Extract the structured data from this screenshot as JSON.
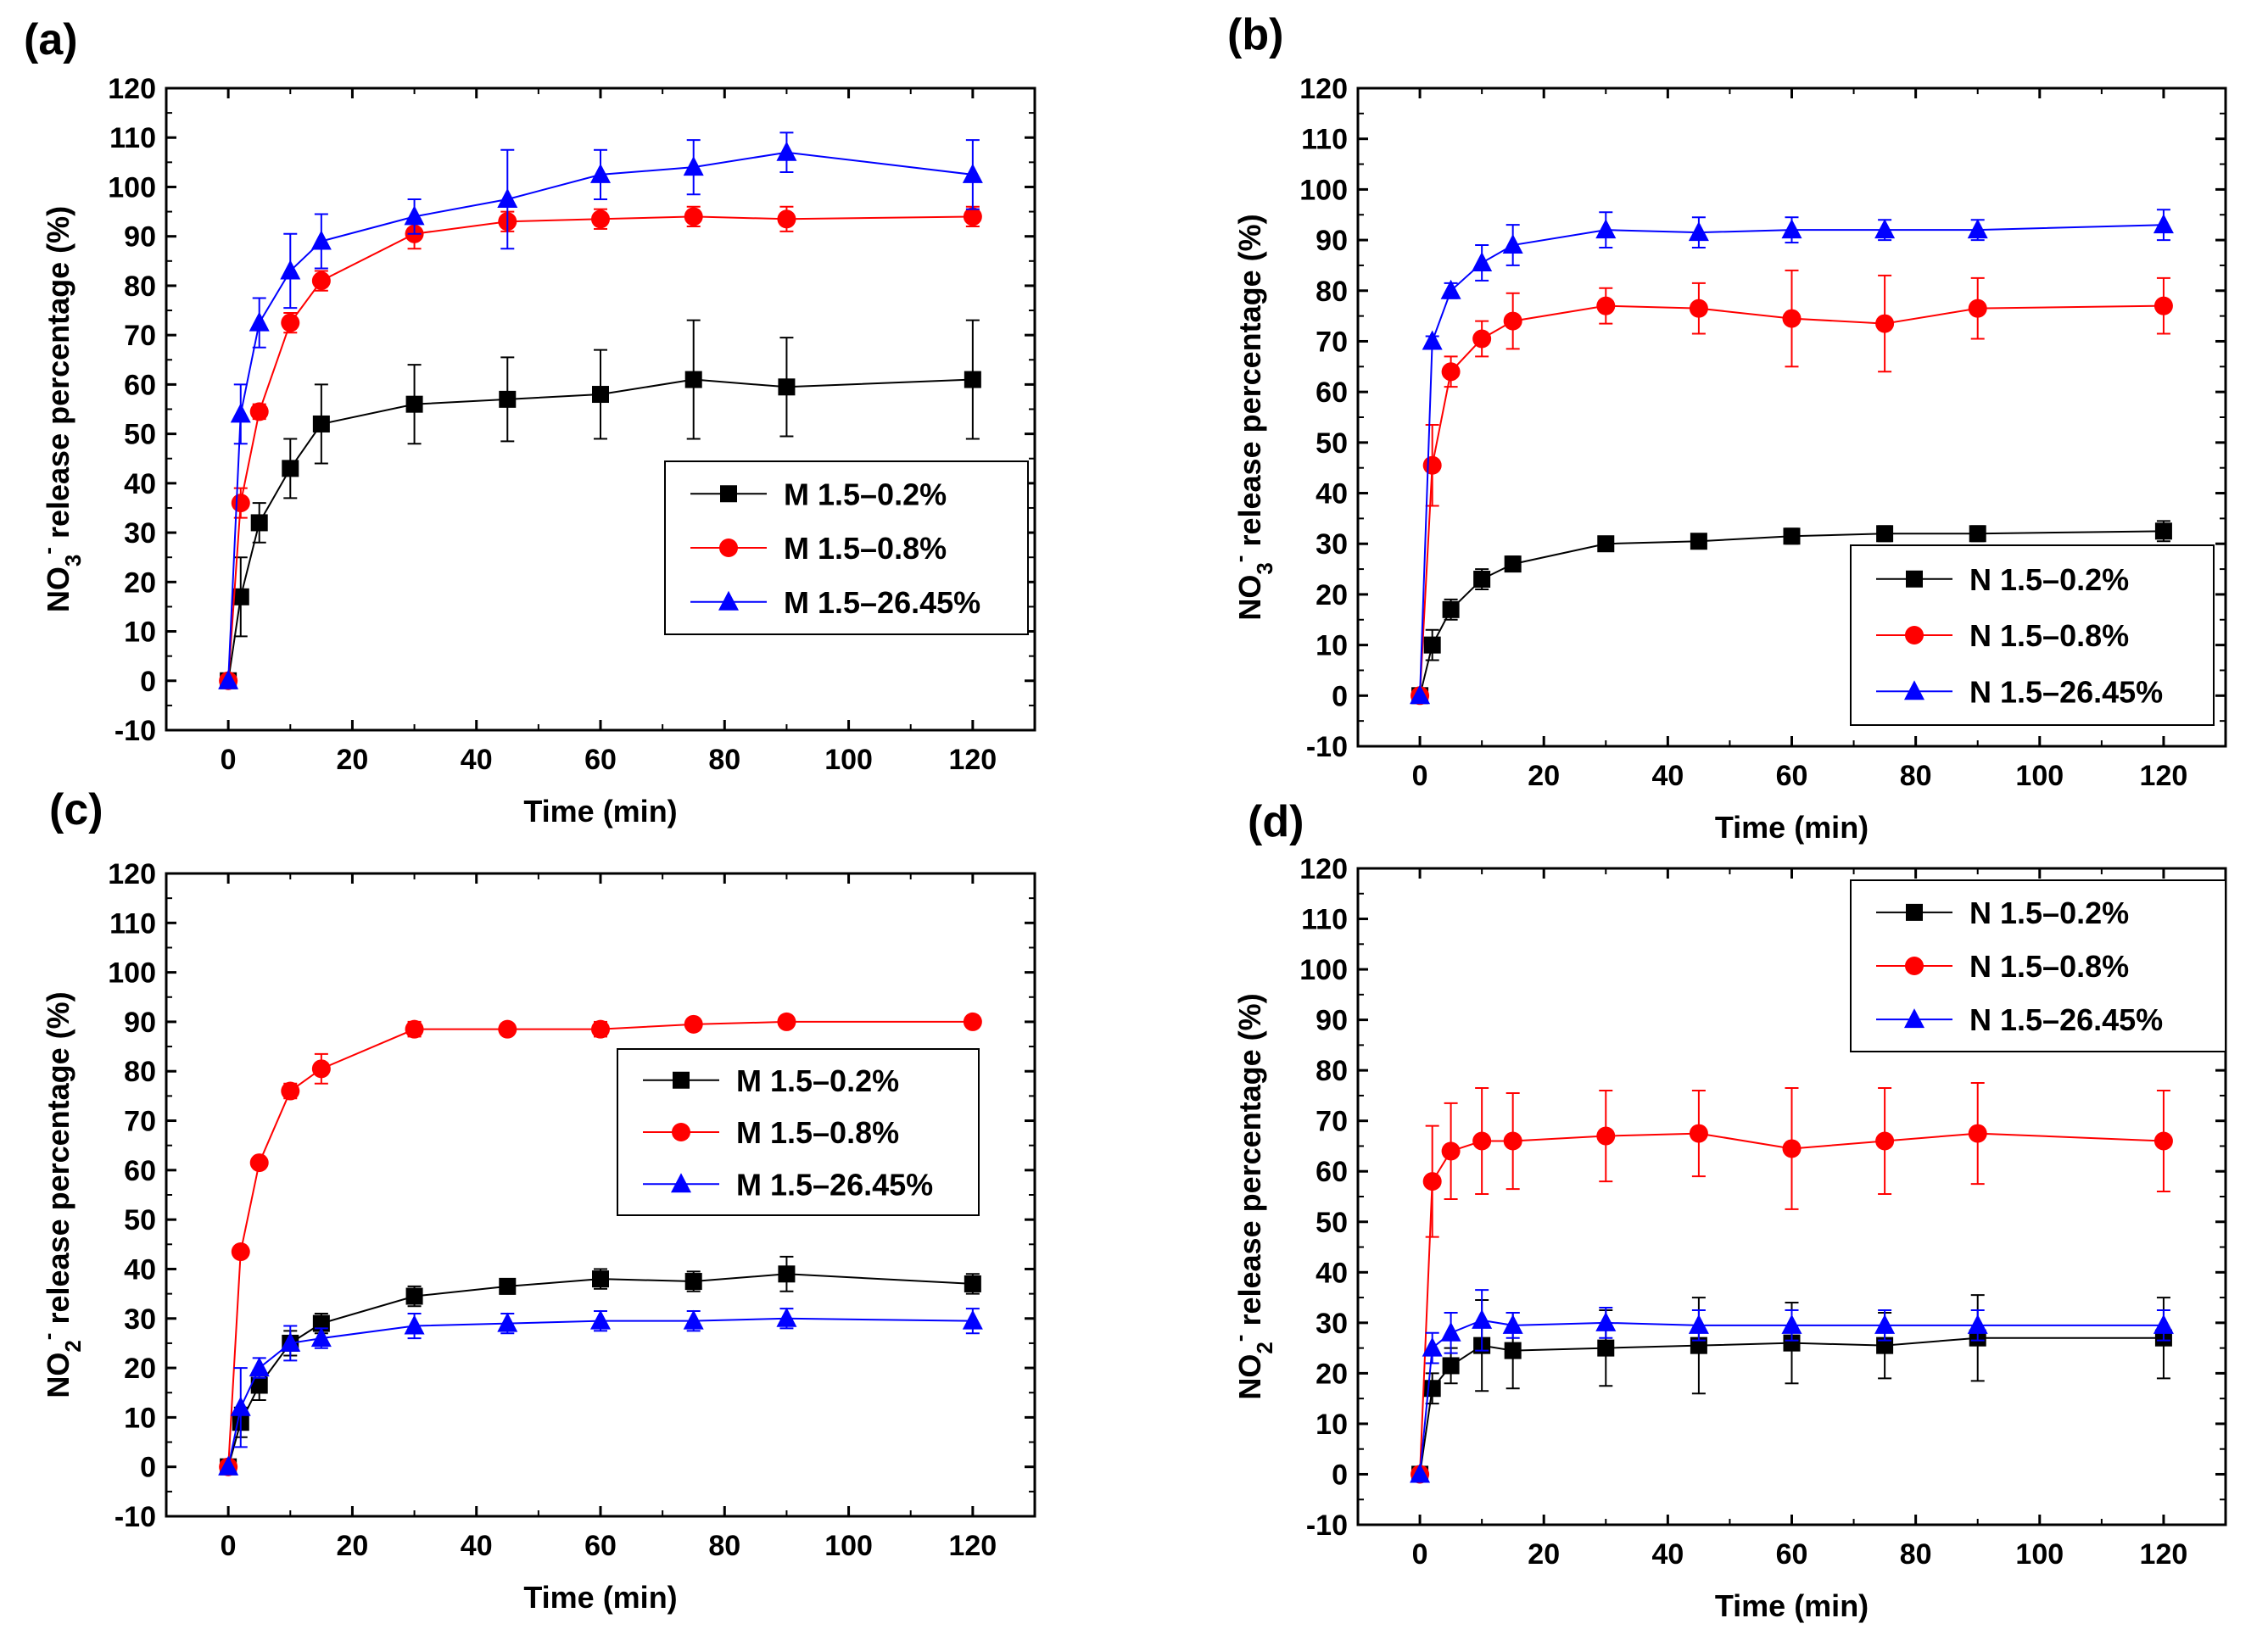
{
  "chart_data": [
    {
      "panel_label": "(a)",
      "type": "line",
      "title": "",
      "xlabel": "Time (min)",
      "ylabel": {
        "base": "NO",
        "sub": "3",
        "sup": "-",
        "rest": " release percentage (%)"
      },
      "xlim": [
        -10,
        130
      ],
      "ylim": [
        -10,
        120
      ],
      "xticks": [
        0,
        20,
        40,
        60,
        80,
        100,
        120
      ],
      "yticks": [
        -10,
        0,
        10,
        20,
        30,
        40,
        50,
        60,
        70,
        80,
        90,
        100,
        110,
        120
      ],
      "grid": false,
      "legend_position": "middle-right",
      "x": [
        0,
        2,
        5,
        10,
        15,
        30,
        45,
        60,
        75,
        90,
        120
      ],
      "series": [
        {
          "name": "M 1.5–0.2%",
          "marker": "square",
          "color": "#000000",
          "values": [
            0,
            17,
            32,
            43,
            52,
            56,
            57,
            58,
            61,
            59.5,
            61
          ],
          "errors": [
            0,
            8,
            4,
            6,
            8,
            8,
            8.5,
            9,
            12,
            10,
            12
          ]
        },
        {
          "name": "M 1.5–0.8%",
          "marker": "circle",
          "color": "#ff0000",
          "values": [
            0,
            36,
            54.5,
            72.5,
            81,
            90.5,
            93,
            93.5,
            94,
            93.5,
            94
          ],
          "errors": [
            0,
            3,
            1.5,
            2,
            2,
            3,
            2,
            2,
            2,
            2.5,
            2
          ]
        },
        {
          "name": "M 1.5–26.45%",
          "marker": "triangle",
          "color": "#0000ff",
          "values": [
            0,
            54,
            72.5,
            83,
            89,
            94,
            97.5,
            102.5,
            104,
            107,
            102.5
          ],
          "errors": [
            0,
            6,
            5,
            7.5,
            5.5,
            3.5,
            10,
            5,
            5.5,
            4,
            7
          ]
        }
      ]
    },
    {
      "panel_label": "(b)",
      "type": "line",
      "title": "",
      "xlabel": "Time (min)",
      "ylabel": {
        "base": "NO",
        "sub": "3",
        "sup": "-",
        "rest": " release percentage (%)"
      },
      "xlim": [
        -10,
        130
      ],
      "ylim": [
        -10,
        120
      ],
      "xticks": [
        0,
        20,
        40,
        60,
        80,
        100,
        120
      ],
      "yticks": [
        -10,
        0,
        10,
        20,
        30,
        40,
        50,
        60,
        70,
        80,
        90,
        100,
        110,
        120
      ],
      "grid": false,
      "legend_position": "bottom-right",
      "x": [
        0,
        2,
        5,
        10,
        15,
        30,
        45,
        60,
        75,
        90,
        120
      ],
      "series": [
        {
          "name": "N 1.5–0.2%",
          "marker": "square",
          "color": "#000000",
          "values": [
            0,
            10,
            17,
            23,
            26,
            30,
            30.5,
            31.5,
            32,
            32,
            32.5
          ],
          "errors": [
            0,
            3,
            2,
            2,
            1.5,
            1,
            1,
            1.5,
            1.5,
            1.5,
            2
          ]
        },
        {
          "name": "N 1.5–0.8%",
          "marker": "circle",
          "color": "#ff0000",
          "values": [
            0,
            45.5,
            64,
            70.5,
            74,
            77,
            76.5,
            74.5,
            73.5,
            76.5,
            77
          ],
          "errors": [
            0,
            8,
            3,
            3.5,
            5.5,
            3.5,
            5,
            9.5,
            9.5,
            6,
            5.5
          ]
        },
        {
          "name": "N 1.5–26.45%",
          "marker": "triangle",
          "color": "#0000ff",
          "values": [
            0,
            70,
            80,
            85.5,
            89,
            92,
            91.5,
            92,
            92,
            92,
            93
          ],
          "errors": [
            0,
            1,
            1.5,
            3.5,
            4,
            3.5,
            3,
            2.5,
            2,
            2,
            3
          ]
        }
      ]
    },
    {
      "panel_label": "(c)",
      "type": "line",
      "title": "",
      "xlabel": "Time (min)",
      "ylabel": {
        "base": "NO",
        "sub": "2",
        "sup": "-",
        "rest": " release percentage (%)"
      },
      "xlim": [
        -10,
        130
      ],
      "ylim": [
        -10,
        120
      ],
      "xticks": [
        0,
        20,
        40,
        60,
        80,
        100,
        120
      ],
      "yticks": [
        -10,
        0,
        10,
        20,
        30,
        40,
        50,
        60,
        70,
        80,
        90,
        100,
        110,
        120
      ],
      "grid": false,
      "legend_position": "middle-right",
      "x": [
        0,
        2,
        5,
        10,
        15,
        30,
        45,
        60,
        75,
        90,
        120
      ],
      "series": [
        {
          "name": "M 1.5–0.2%",
          "marker": "square",
          "color": "#000000",
          "values": [
            0,
            9,
            16.5,
            25,
            29,
            34.5,
            36.5,
            38,
            37.5,
            39,
            37
          ],
          "errors": [
            0,
            3,
            3,
            2.5,
            2,
            2,
            1.5,
            2,
            2,
            3.5,
            2
          ]
        },
        {
          "name": "M 1.5–0.8%",
          "marker": "circle",
          "color": "#ff0000",
          "values": [
            0,
            43.5,
            61.5,
            76,
            80.5,
            88.5,
            88.5,
            88.5,
            89.5,
            90,
            90
          ],
          "errors": [
            0,
            1,
            1,
            1.5,
            3,
            1.5,
            1,
            1.5,
            1,
            1,
            1
          ]
        },
        {
          "name": "M 1.5–26.45%",
          "marker": "triangle",
          "color": "#0000ff",
          "values": [
            0,
            12,
            20,
            25,
            26,
            28.5,
            29,
            29.5,
            29.5,
            30,
            29.5
          ],
          "errors": [
            0,
            8,
            2,
            3.5,
            2,
            2.5,
            2,
            2,
            2,
            2,
            2.5
          ]
        }
      ]
    },
    {
      "panel_label": "(d)",
      "type": "line",
      "title": "",
      "xlabel": "Time (min)",
      "ylabel": {
        "base": "NO",
        "sub": "2",
        "sup": "-",
        "rest": " release percentage (%)"
      },
      "xlim": [
        -10,
        130
      ],
      "ylim": [
        -10,
        120
      ],
      "xticks": [
        0,
        20,
        40,
        60,
        80,
        100,
        120
      ],
      "yticks": [
        -10,
        0,
        10,
        20,
        30,
        40,
        50,
        60,
        70,
        80,
        90,
        100,
        110,
        120
      ],
      "grid": false,
      "legend_position": "top-right",
      "x": [
        0,
        2,
        5,
        10,
        15,
        30,
        45,
        60,
        75,
        90,
        120
      ],
      "series": [
        {
          "name": "N 1.5–0.2%",
          "marker": "square",
          "color": "#000000",
          "values": [
            0,
            17,
            21.5,
            25.5,
            24.5,
            25,
            25.5,
            26,
            25.5,
            27,
            27
          ],
          "errors": [
            0,
            3,
            3.5,
            9,
            7.5,
            7.5,
            9.5,
            8,
            6.5,
            8.5,
            8
          ]
        },
        {
          "name": "N 1.5–0.8%",
          "marker": "circle",
          "color": "#ff0000",
          "values": [
            0,
            58,
            64,
            66,
            66,
            67,
            67.5,
            64.5,
            66,
            67.5,
            66
          ],
          "errors": [
            0,
            11,
            9.5,
            10.5,
            9.5,
            9,
            8.5,
            12,
            10.5,
            10,
            10
          ]
        },
        {
          "name": "N 1.5–26.45%",
          "marker": "triangle",
          "color": "#0000ff",
          "values": [
            0,
            25,
            28,
            30.5,
            29.5,
            30,
            29.5,
            29.5,
            29.5,
            29.5,
            29.5
          ],
          "errors": [
            0,
            3,
            4,
            6,
            2.5,
            3,
            3,
            3,
            3,
            3,
            3
          ]
        }
      ]
    }
  ]
}
